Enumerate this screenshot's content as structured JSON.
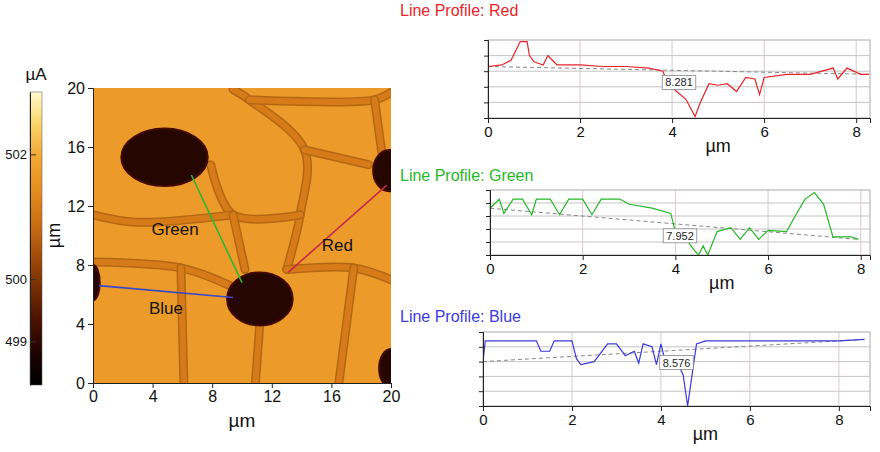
{
  "chart_data": [
    {
      "type": "image_map",
      "xlabel": "µm",
      "ylabel": "µm",
      "xlim": [
        0,
        20
      ],
      "ylim": [
        0,
        20
      ],
      "xticks": [
        0,
        4,
        8,
        12,
        16,
        20
      ],
      "yticks": [
        0,
        4,
        8,
        12,
        16,
        20
      ],
      "background": 501.7,
      "grains": [
        {
          "x": 4.8,
          "y": 15.3,
          "rx": 2.9,
          "ry": 1.95,
          "value": 498.9
        },
        {
          "x": 11.2,
          "y": 5.7,
          "rx": 2.2,
          "ry": 1.8,
          "value": 498.9
        },
        {
          "x": 19.9,
          "y": 14.4,
          "rx": 1.1,
          "ry": 1.4,
          "value": 498.9
        },
        {
          "x": 0,
          "y": 6.8,
          "rx": 0.45,
          "ry": 1.2,
          "value": 498.9
        },
        {
          "x": 20,
          "y": 1.0,
          "rx": 0.8,
          "ry": 1.3,
          "value": 498.9
        }
      ],
      "boundaries": [
        {
          "points": [
            [
              9.4,
              19.9
            ],
            [
              10.5,
              19.2
            ],
            [
              14.2,
              15.8
            ],
            [
              13.9,
              11.4
            ],
            [
              13.0,
              7.7
            ]
          ],
          "value": 501.1
        },
        {
          "points": [
            [
              10.5,
              19.2
            ],
            [
              18.9,
              19.2
            ],
            [
              20,
              19.7
            ]
          ],
          "value": 501.1
        },
        {
          "points": [
            [
              18.9,
              19.2
            ],
            [
              19.4,
              15.5
            ]
          ],
          "value": 501.1
        },
        {
          "points": [
            [
              14.2,
              15.8
            ],
            [
              18.5,
              14.8
            ]
          ],
          "value": 501.1
        },
        {
          "points": [
            [
              7.9,
              14.8
            ],
            [
              9.4,
              11.4
            ],
            [
              13.9,
              11.4
            ]
          ],
          "value": 501.1
        },
        {
          "points": [
            [
              0,
              11.4
            ],
            [
              2.9,
              10.9
            ],
            [
              9.4,
              11.4
            ]
          ],
          "value": 501.1
        },
        {
          "points": [
            [
              9.4,
              11.4
            ],
            [
              10.2,
              7.7
            ]
          ],
          "value": 501.1
        },
        {
          "points": [
            [
              0,
              8.2
            ],
            [
              5.9,
              7.8
            ],
            [
              9.2,
              6.6
            ]
          ],
          "value": 501.1
        },
        {
          "points": [
            [
              5.9,
              7.8
            ],
            [
              6.1,
              0
            ]
          ],
          "value": 501.1
        },
        {
          "points": [
            [
              13.0,
              7.7
            ],
            [
              17.5,
              7.8
            ],
            [
              20,
              7.0
            ]
          ],
          "value": 501.1
        },
        {
          "points": [
            [
              17.5,
              7.8
            ],
            [
              16.5,
              0
            ]
          ],
          "value": 501.1
        },
        {
          "points": [
            [
              11.2,
              4.1
            ],
            [
              10.9,
              0
            ]
          ],
          "value": 501.1
        }
      ],
      "profile_lines": [
        {
          "name": "Green",
          "color": "#2fb52f",
          "start": [
            6.6,
            14.1
          ],
          "end": [
            10.0,
            6.8
          ]
        },
        {
          "name": "Red",
          "color": "#c8284a",
          "start": [
            13.1,
            7.5
          ],
          "end": [
            19.7,
            13.4
          ]
        },
        {
          "name": "Blue",
          "color": "#3a48c8",
          "start": [
            0.4,
            6.6
          ],
          "end": [
            9.4,
            5.8
          ]
        }
      ],
      "colorbar": {
        "label": "µA",
        "range": [
          498.3,
          503.0
        ],
        "ticks": [
          499,
          500,
          502
        ]
      }
    },
    {
      "type": "line",
      "title": "Line Profile: Red",
      "color": "#e8242a",
      "xlabel": "µm",
      "x": [
        0,
        0.3,
        0.5,
        0.7,
        0.85,
        0.9,
        1.0,
        1.2,
        1.3,
        1.4,
        1.5,
        2.0,
        2.5,
        3.0,
        3.5,
        3.8,
        3.9,
        4.1,
        4.3,
        4.5,
        4.6,
        4.8,
        5.0,
        5.2,
        5.4,
        5.6,
        5.8,
        5.9,
        6.0,
        6.5,
        7.0,
        7.5,
        7.6,
        7.8,
        8.1,
        8.281
      ],
      "values": [
        501.3,
        501.4,
        501.7,
        502.9,
        502.9,
        502.0,
        501.6,
        501.4,
        502.0,
        501.7,
        501.4,
        501.4,
        501.3,
        501.3,
        501.2,
        501.0,
        500.2,
        499.7,
        499.2,
        498.1,
        498.9,
        500.2,
        500.1,
        500.2,
        499.7,
        500.6,
        500.5,
        499.5,
        500.6,
        500.8,
        500.8,
        501.2,
        500.5,
        501.2,
        500.8,
        500.8
      ],
      "xlim": [
        0,
        8.3
      ],
      "ylim": [
        498,
        503
      ],
      "xticks": [
        0,
        2,
        4,
        6,
        8
      ],
      "yticks": [
        499,
        500,
        501,
        502
      ],
      "grid": true,
      "tick_labels": "x",
      "annotations": [
        "8.281"
      ]
    },
    {
      "type": "line",
      "title": "Line Profile: Green",
      "color": "#26b826",
      "xlabel": "µm",
      "x": [
        0,
        0.2,
        0.3,
        0.5,
        0.7,
        0.9,
        1.0,
        1.3,
        1.5,
        1.7,
        2.0,
        2.2,
        2.4,
        2.8,
        3.0,
        3.5,
        3.9,
        4.0,
        4.2,
        4.4,
        4.5,
        4.6,
        4.7,
        4.9,
        5.2,
        5.4,
        5.6,
        5.8,
        6.0,
        6.4,
        6.6,
        6.8,
        7.0,
        7.2,
        7.4,
        7.8,
        7.952
      ],
      "values": [
        501.6,
        502.3,
        501.2,
        502.3,
        502.3,
        501.1,
        502.3,
        502.3,
        501.1,
        502.3,
        502.3,
        501.1,
        502.3,
        502.3,
        501.9,
        501.6,
        501.2,
        499.8,
        499.4,
        498.4,
        498.0,
        498.7,
        498.0,
        499.8,
        500.1,
        499.2,
        500.1,
        499.2,
        499.9,
        499.8,
        501.1,
        502.3,
        502.8,
        501.9,
        499.4,
        499.4,
        499.2
      ],
      "xlim": [
        0,
        8.2
      ],
      "ylim": [
        498,
        503
      ],
      "xticks": [
        0,
        2,
        4,
        6,
        8
      ],
      "yticks": [
        499,
        500,
        501,
        502
      ],
      "grid": true,
      "tick_labels": "x",
      "annotations": [
        "7.952"
      ]
    },
    {
      "type": "line",
      "title": "Line Profile: Blue",
      "color": "#3a3ae0",
      "xlabel": "µm",
      "x": [
        0,
        0.05,
        0.5,
        1.2,
        1.3,
        1.5,
        1.6,
        2.0,
        2.1,
        2.2,
        2.5,
        2.8,
        3.0,
        3.2,
        3.4,
        3.5,
        3.6,
        3.8,
        3.9,
        4.0,
        4.1,
        4.3,
        4.5,
        4.6,
        4.7,
        4.8,
        5.0,
        6.0,
        7.0,
        8.0,
        8.576
      ],
      "values": [
        501.0,
        502.4,
        502.4,
        502.4,
        501.7,
        501.7,
        502.4,
        502.4,
        501.2,
        500.8,
        501.0,
        502.2,
        502.2,
        501.4,
        501.7,
        500.9,
        502.2,
        502.0,
        500.8,
        502.2,
        501.0,
        501.4,
        500.1,
        498.0,
        500.1,
        502.2,
        502.4,
        502.4,
        502.4,
        502.4,
        502.5
      ],
      "xlim": [
        0,
        8.7
      ],
      "ylim": [
        498,
        503
      ],
      "xticks": [
        0,
        2,
        4,
        6,
        8
      ],
      "yticks": [
        499,
        500,
        501,
        502
      ],
      "grid": true,
      "tick_labels": "x",
      "annotations": [
        "8.576"
      ]
    }
  ]
}
